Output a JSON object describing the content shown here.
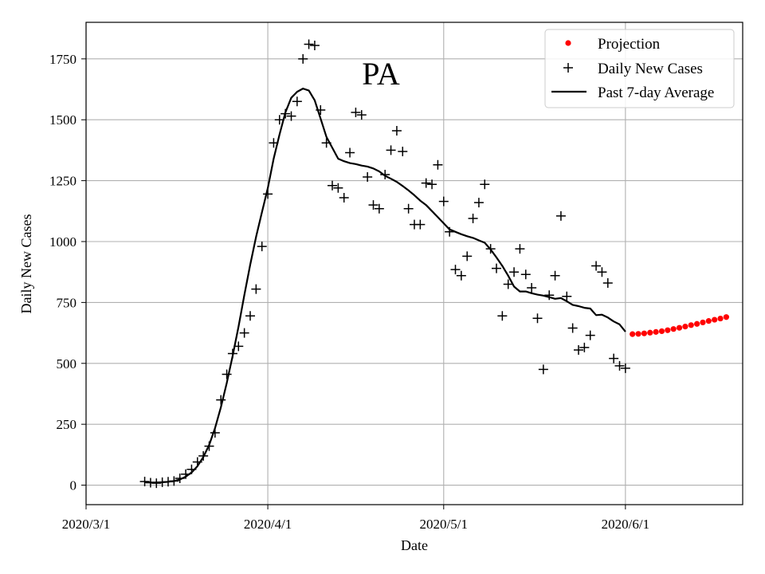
{
  "chart_data": {
    "type": "scatter+line",
    "title": "PA",
    "xlabel": "Date",
    "ylabel": "Daily New Cases",
    "xlim": [
      0,
      112
    ],
    "ylim": [
      -80,
      1900
    ],
    "x_ticks": [
      {
        "day": 0,
        "label": "2020/3/1"
      },
      {
        "day": 31,
        "label": "2020/4/1"
      },
      {
        "day": 61,
        "label": "2020/5/1"
      },
      {
        "day": 92,
        "label": "2020/6/1"
      }
    ],
    "y_ticks": [
      0,
      250,
      500,
      750,
      1000,
      1250,
      1500,
      1750
    ],
    "y_tick_labels": [
      "0",
      "250",
      "500",
      "750",
      "1000",
      "1250",
      "1500",
      "1750"
    ],
    "grid": true,
    "legend_position": "top-right",
    "series": [
      {
        "name": "Projection",
        "kind": "points",
        "color": "#ff0000",
        "x": [
          93.2,
          94.2,
          95.2,
          96.2,
          97.2,
          98.2,
          99.2,
          100.2,
          101.2,
          102.2,
          103.2,
          104.2,
          105.2,
          106.2,
          107.2,
          108.2,
          109.2
        ],
        "y": [
          620,
          621,
          623,
          626,
          629,
          632,
          636,
          641,
          646,
          651,
          657,
          662,
          668,
          674,
          679,
          684,
          690
        ]
      },
      {
        "name": "Daily New Cases",
        "kind": "plus",
        "color": "#000000",
        "x": [
          10,
          11,
          12,
          13,
          14,
          15,
          16,
          17,
          18,
          19,
          20,
          21,
          22,
          23,
          24,
          25,
          26,
          27,
          28,
          29,
          30,
          31,
          32,
          33,
          34,
          35,
          36,
          37,
          38,
          39,
          40,
          41,
          42,
          43,
          44,
          45,
          46,
          47,
          48,
          49,
          50,
          51,
          52,
          53,
          54,
          55,
          56,
          57,
          58,
          59,
          60,
          61,
          62,
          63,
          64,
          65,
          66,
          67,
          68,
          69,
          70,
          71,
          72,
          73,
          74,
          75,
          76,
          77,
          78,
          79,
          80,
          81,
          82,
          83,
          84,
          85,
          86,
          87,
          88,
          89,
          90,
          91,
          92
        ],
        "y": [
          15,
          10,
          8,
          12,
          14,
          17,
          28,
          45,
          65,
          95,
          120,
          160,
          215,
          350,
          455,
          540,
          570,
          625,
          695,
          805,
          980,
          1195,
          1405,
          1500,
          1525,
          1515,
          1575,
          1750,
          1810,
          1805,
          1540,
          1405,
          1230,
          1220,
          1180,
          1365,
          1530,
          1520,
          1265,
          1150,
          1135,
          1275,
          1375,
          1455,
          1370,
          1135,
          1070,
          1070,
          1240,
          1235,
          1315,
          1165,
          1040,
          885,
          860,
          940,
          1095,
          1160,
          1235,
          970,
          890,
          695,
          825,
          875,
          970,
          865,
          810,
          685,
          475,
          780,
          860,
          1105,
          775,
          645,
          555,
          565,
          615,
          900,
          875,
          830,
          520,
          490,
          480
        ]
      },
      {
        "name": "Past 7-day Average",
        "kind": "line",
        "color": "#000000",
        "x": [
          10,
          11,
          12,
          13,
          14,
          15,
          16,
          17,
          18,
          19,
          20,
          21,
          22,
          23,
          24,
          25,
          26,
          27,
          28,
          29,
          30,
          31,
          32,
          33,
          34,
          35,
          36,
          37,
          38,
          39,
          40,
          41,
          42,
          43,
          44,
          45,
          46,
          47,
          48,
          49,
          50,
          51,
          52,
          53,
          54,
          55,
          56,
          57,
          58,
          59,
          60,
          61,
          62,
          63,
          64,
          65,
          66,
          67,
          68,
          69,
          70,
          71,
          72,
          73,
          74,
          75,
          76,
          77,
          78,
          79,
          80,
          81,
          82,
          83,
          84,
          85,
          86,
          87,
          88,
          89,
          90,
          91,
          92
        ],
        "y": [
          12,
          11,
          11,
          12,
          14,
          17,
          23,
          35,
          52,
          78,
          115,
          165,
          235,
          320,
          420,
          530,
          650,
          780,
          905,
          1020,
          1120,
          1220,
          1340,
          1440,
          1530,
          1590,
          1615,
          1628,
          1620,
          1580,
          1505,
          1430,
          1385,
          1340,
          1330,
          1322,
          1318,
          1312,
          1308,
          1300,
          1288,
          1270,
          1258,
          1245,
          1228,
          1210,
          1190,
          1168,
          1150,
          1125,
          1100,
          1075,
          1050,
          1040,
          1030,
          1022,
          1015,
          1005,
          995,
          968,
          935,
          900,
          860,
          815,
          795,
          795,
          788,
          782,
          778,
          772,
          765,
          768,
          755,
          740,
          735,
          728,
          725,
          698,
          700,
          688,
          672,
          660,
          630
        ]
      }
    ],
    "legend": [
      "Projection",
      "Daily New Cases",
      "Past 7-day Average"
    ]
  }
}
